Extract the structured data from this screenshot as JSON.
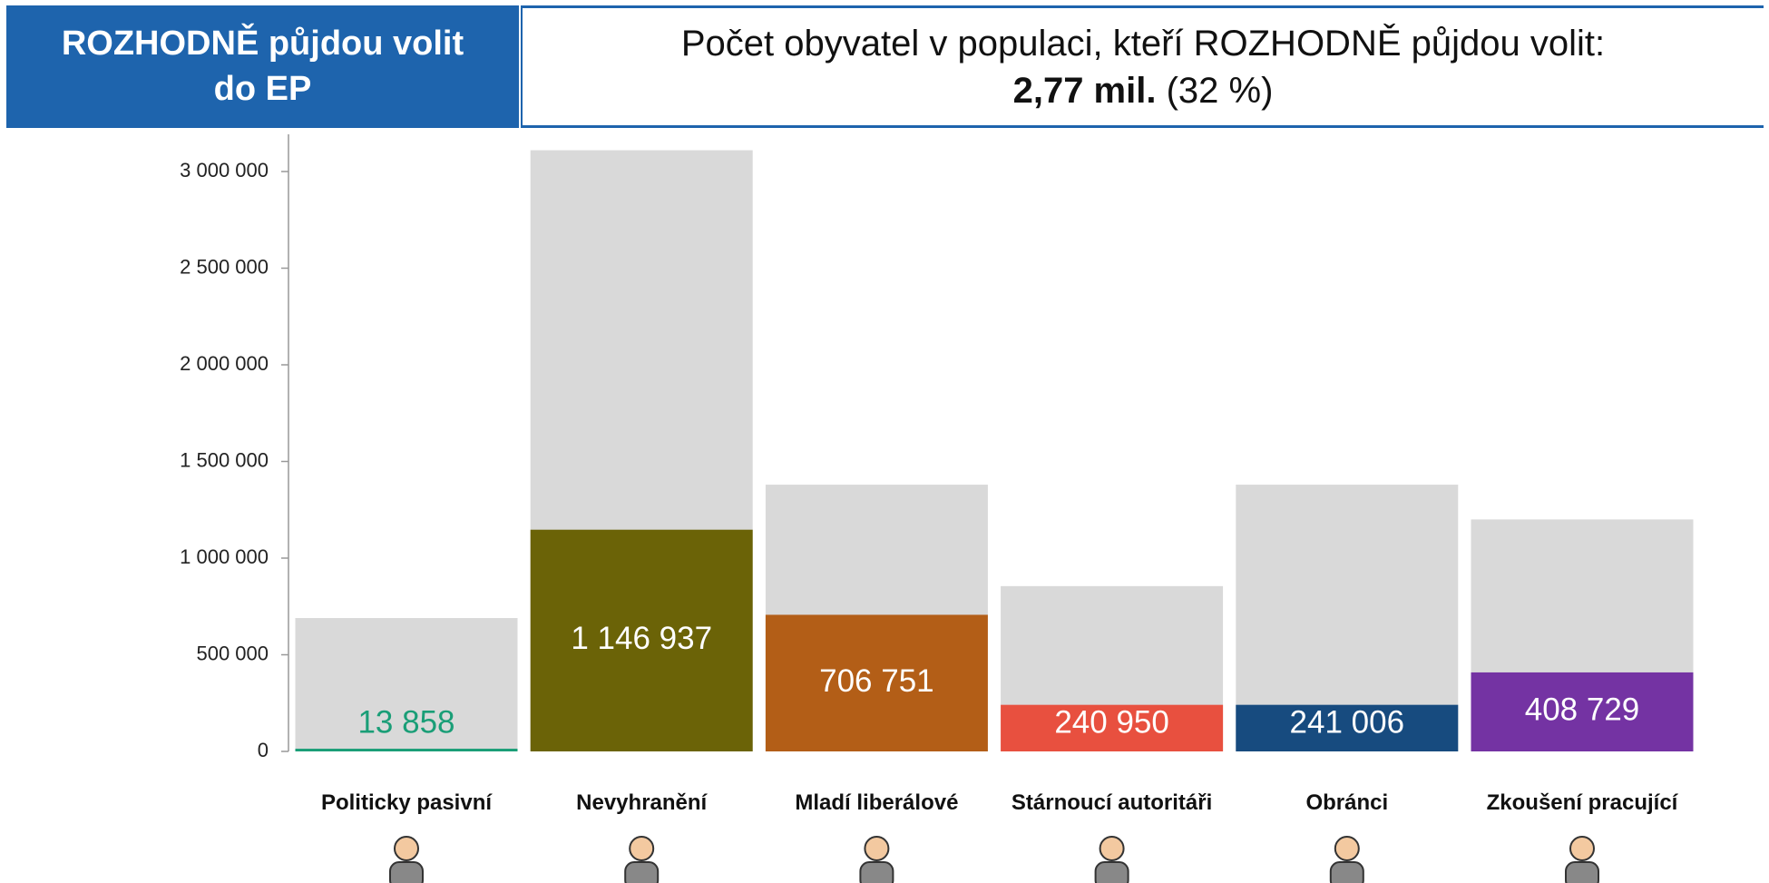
{
  "header": {
    "label": "ROZHODNĚ půjdou volit do EP",
    "title": "Počet obyvatel v populaci, kteří ROZHODNĚ půjdou volit:",
    "highlight": "2,77 mil.",
    "share": "(32 %)"
  },
  "chart_data": {
    "type": "bar",
    "categories": [
      "Politicky pasivní",
      "Nevyhranění",
      "Mladí liberálové",
      "Stárnoucí autoritáři",
      "Obránci",
      "Zkoušení pracující"
    ],
    "series": [
      {
        "color": "#d9d9d9",
        "values": [
          690000,
          3110000,
          1380000,
          855000,
          1380000,
          1200000
        ]
      },
      {
        "colors": [
          "#1a9e77",
          "#6b6307",
          "#b35e17",
          "#e8503f",
          "#174b7f",
          "#7433a3"
        ],
        "values": [
          13858,
          1146937,
          706751,
          240950,
          241006,
          408729
        ],
        "value_labels": [
          "13 858",
          "1 146 937",
          "706 751",
          "240 950",
          "241 006",
          "408 729"
        ]
      }
    ],
    "ylim": [
      0,
      3200000
    ],
    "yticks": [
      0,
      {
        "value": 500000,
        "label": "500 000"
      },
      {
        "value": 1000000,
        "label": "1 000 000"
      },
      {
        "value": 1500000,
        "label": "1 500 000"
      },
      {
        "value": 2000000,
        "label": "2 000 000"
      },
      {
        "value": 2500000,
        "label": "2 500 000"
      },
      {
        "value": 3000000,
        "label": "3 000 000"
      }
    ]
  }
}
